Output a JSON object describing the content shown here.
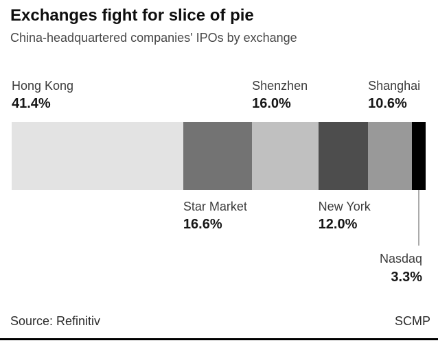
{
  "header": {
    "title": "Exchanges fight for slice of pie",
    "subtitle": "China-headquartered companies' IPOs by exchange"
  },
  "footer": {
    "source": "Source: Refinitiv",
    "brand": "SCMP"
  },
  "chart_data": {
    "type": "bar",
    "variant": "stacked-horizontal-single-bar",
    "title": "Exchanges fight for slice of pie",
    "subtitle": "China-headquartered companies' IPOs by exchange",
    "unit": "%",
    "grid": false,
    "legend": "inline-labels",
    "leader_line_color": "#ababab",
    "segments": [
      {
        "label": "Hong Kong",
        "value": 41.4,
        "display": "41.4%",
        "color": "#e3e3e3",
        "label_position": "above"
      },
      {
        "label": "Star Market",
        "value": 16.6,
        "display": "16.6%",
        "color": "#737373",
        "label_position": "below"
      },
      {
        "label": "Shenzhen",
        "value": 16.0,
        "display": "16.0%",
        "color": "#c0c0c0",
        "label_position": "above"
      },
      {
        "label": "New York",
        "value": 12.0,
        "display": "12.0%",
        "color": "#4d4d4d",
        "label_position": "below"
      },
      {
        "label": "Shanghai",
        "value": 10.6,
        "display": "10.6%",
        "color": "#999999",
        "label_position": "above"
      },
      {
        "label": "Nasdaq",
        "value": 3.3,
        "display": "3.3%",
        "color": "#000000",
        "label_position": "callout-below-right"
      }
    ]
  }
}
